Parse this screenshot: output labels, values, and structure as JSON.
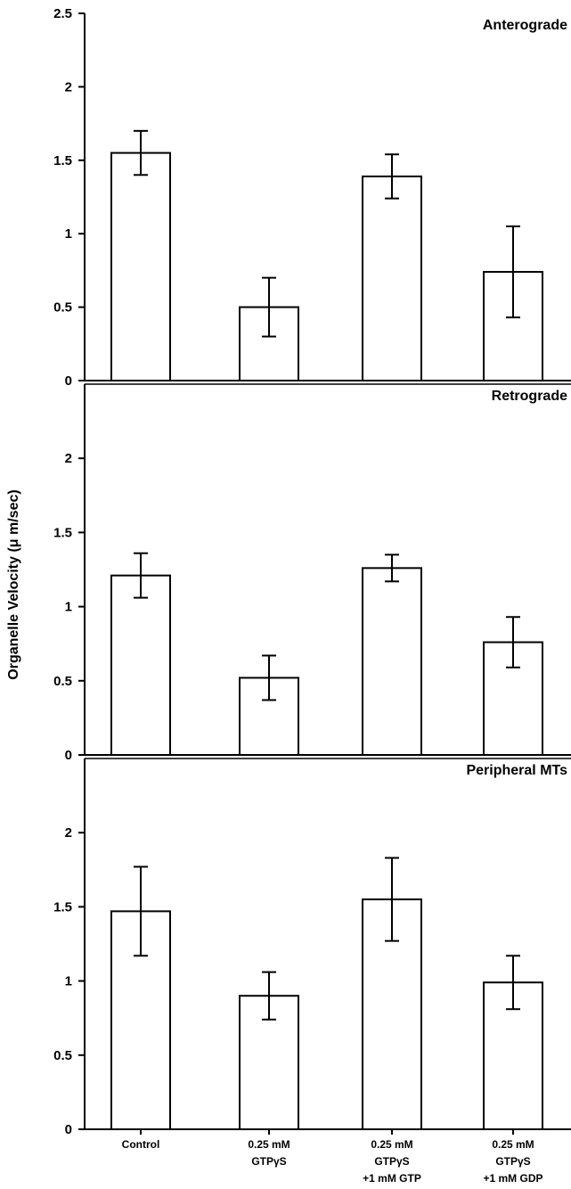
{
  "chart_data": {
    "type": "bar",
    "ylabel": "Organelle Velocity (μ m/sec)",
    "categories": [
      [
        "Control"
      ],
      [
        "0.25 mM",
        "GTPγS"
      ],
      [
        "0.25 mM",
        "GTPγS",
        "+1 mM GTP"
      ],
      [
        "0.25 mM",
        "GTPγS",
        "+1 mM GDP"
      ]
    ],
    "panels": [
      {
        "title": "Anterograde",
        "ylim": [
          0,
          2.5
        ],
        "yticks": [
          "0",
          "0.5",
          "1",
          "1.5",
          "2",
          "2.5"
        ],
        "values": [
          1.55,
          0.5,
          1.39,
          0.74
        ],
        "errors": [
          0.15,
          0.2,
          0.15,
          0.31
        ]
      },
      {
        "title": "Retrograde",
        "ylim": [
          0,
          2.5
        ],
        "yticks": [
          "0",
          "0.5",
          "1",
          "1.5",
          "2"
        ],
        "values": [
          1.21,
          0.52,
          1.26,
          0.76
        ],
        "errors": [
          0.15,
          0.15,
          0.09,
          0.17
        ]
      },
      {
        "title": "Peripheral MTs",
        "ylim": [
          0,
          2.5
        ],
        "yticks": [
          "0",
          "0.5",
          "1",
          "1.5",
          "2"
        ],
        "values": [
          1.47,
          0.9,
          1.55,
          0.99
        ],
        "errors": [
          0.3,
          0.16,
          0.28,
          0.18
        ]
      }
    ],
    "grid": false,
    "legend": "none"
  }
}
